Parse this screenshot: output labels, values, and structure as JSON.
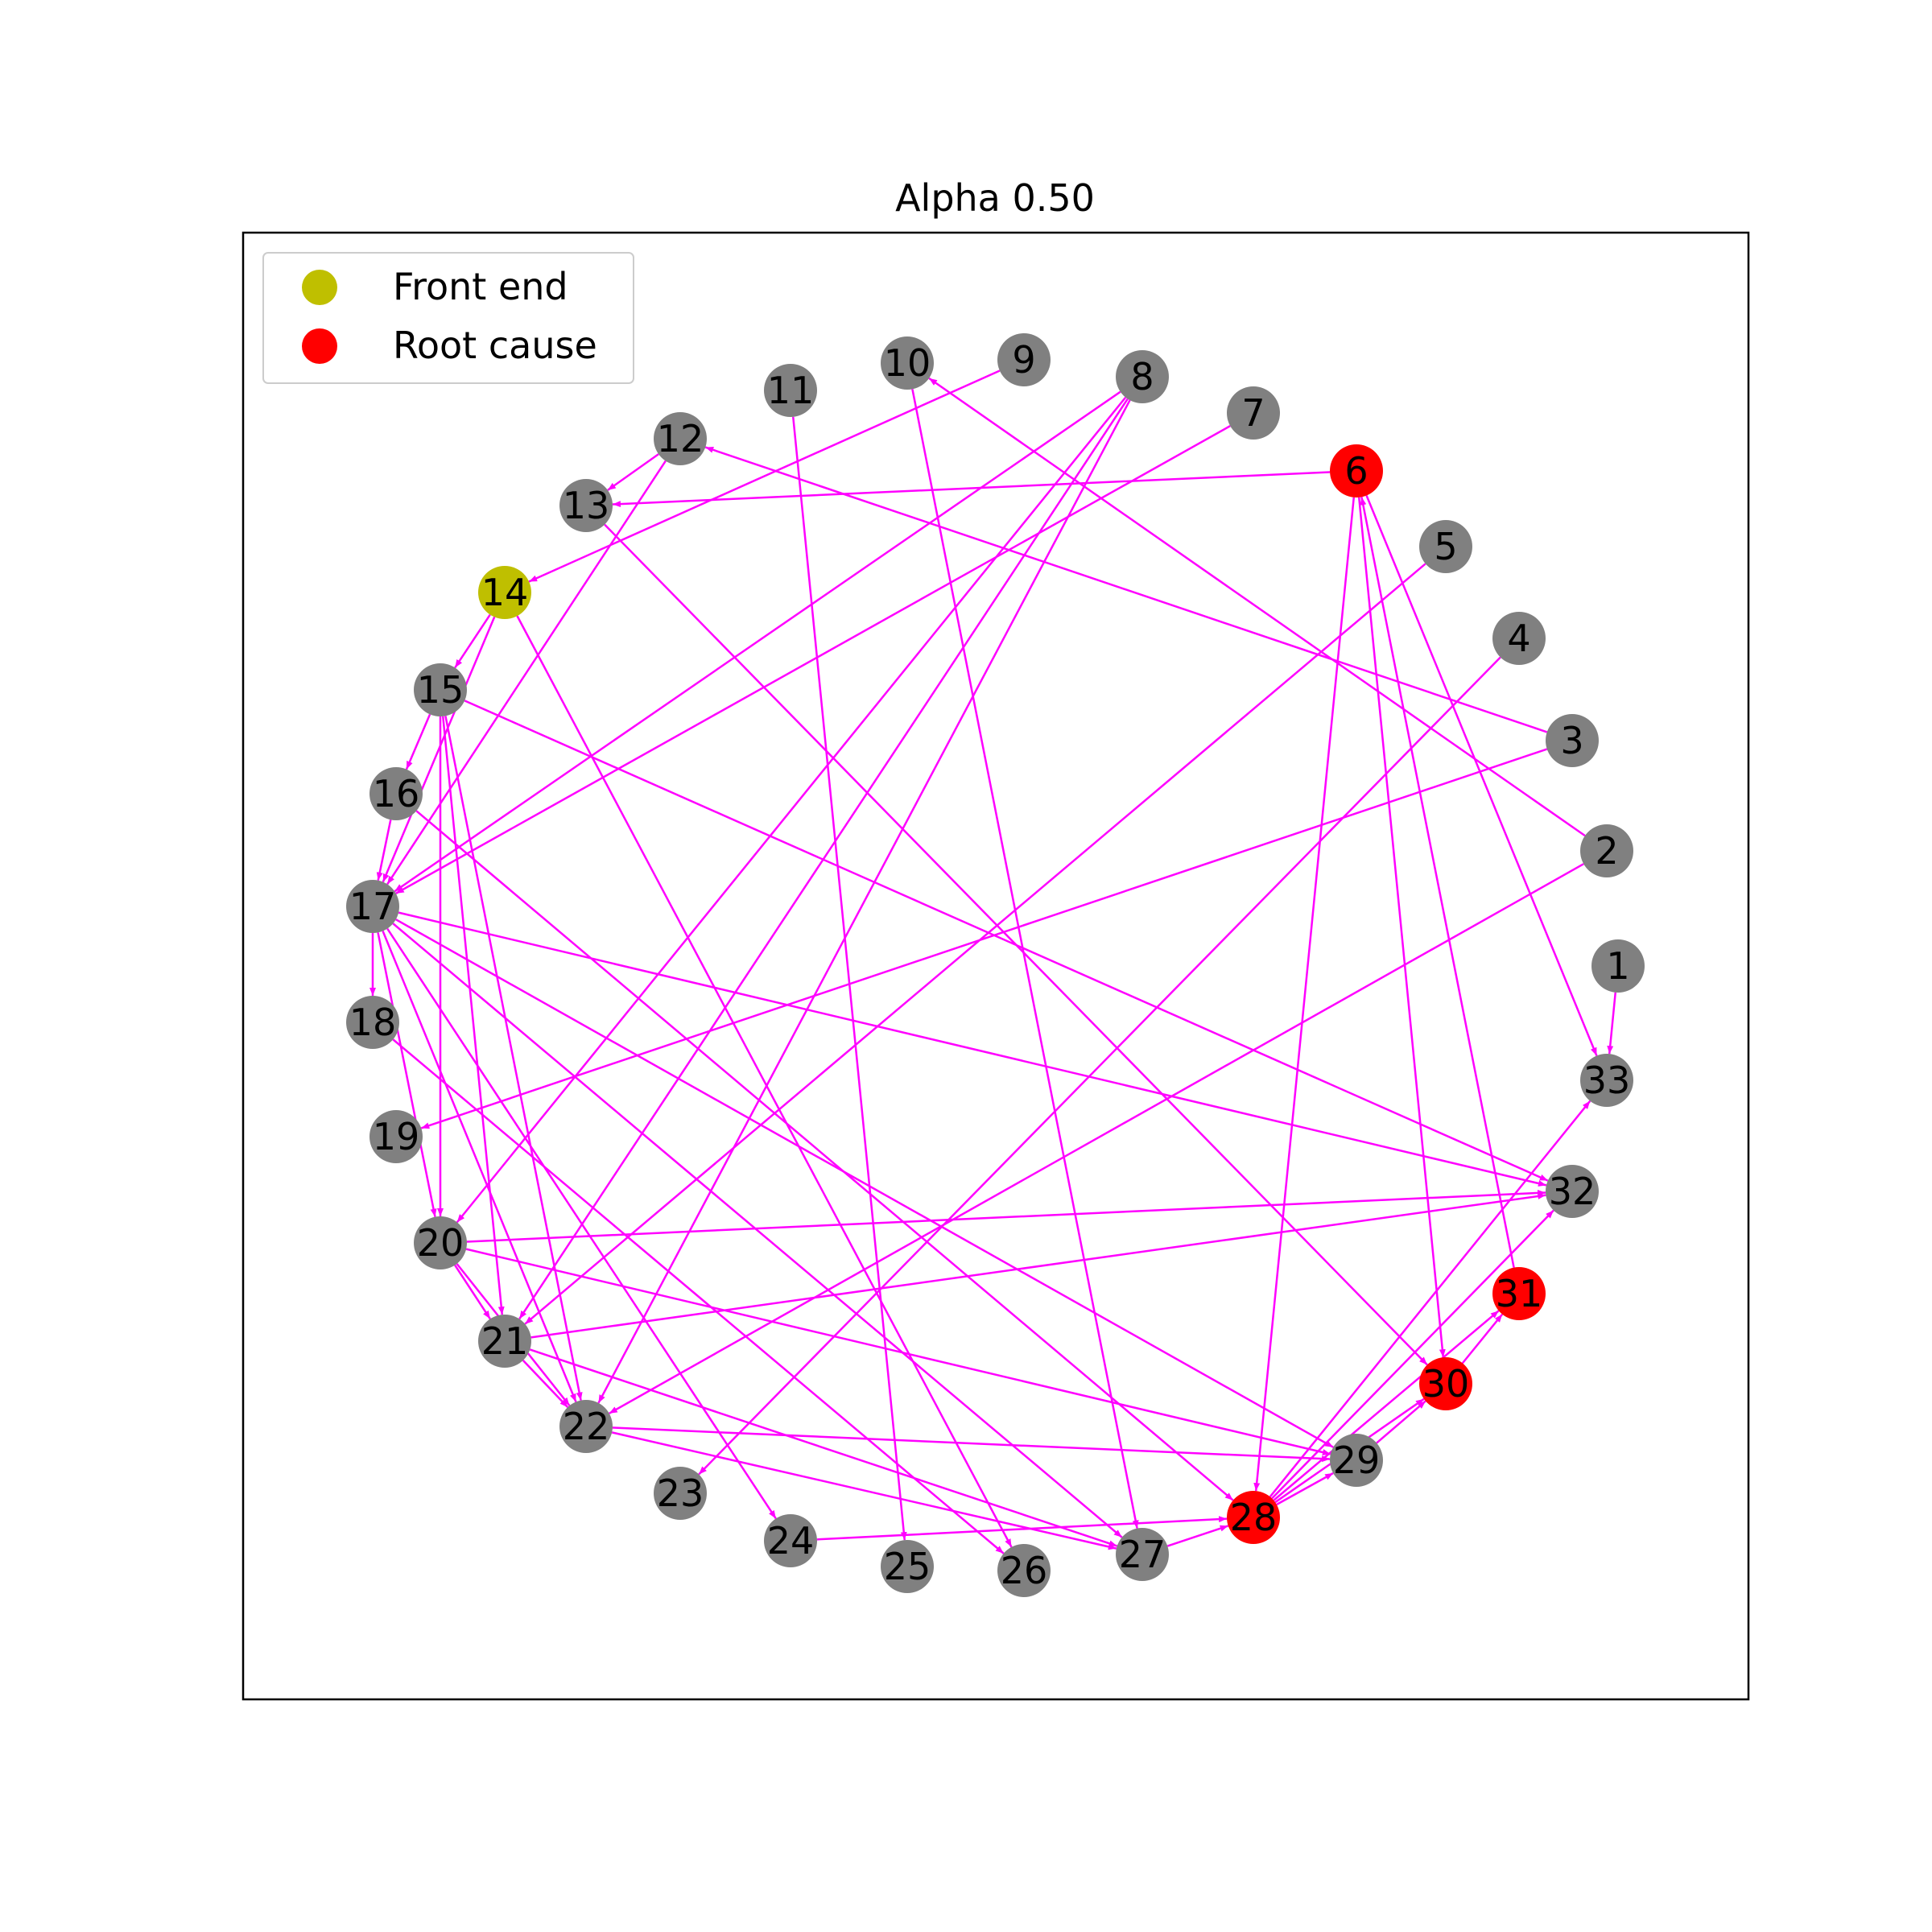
{
  "title": "Alpha 0.50",
  "colors": {
    "edge": "#ff00ff",
    "node_default": "#808080",
    "front_end": "#bfbf00",
    "root_cause": "#ff0000",
    "frame": "#000000"
  },
  "legend": {
    "placement": "top-left",
    "items": [
      {
        "label": "Front end",
        "color": "#bfbf00"
      },
      {
        "label": "Root cause",
        "color": "#ff0000"
      }
    ]
  },
  "graph": {
    "front_end": [
      "14"
    ],
    "root_cause": [
      "6",
      "28",
      "30",
      "31"
    ],
    "nodes": [
      "1",
      "2",
      "3",
      "4",
      "5",
      "6",
      "7",
      "8",
      "9",
      "10",
      "11",
      "12",
      "13",
      "14",
      "15",
      "16",
      "17",
      "18",
      "19",
      "20",
      "21",
      "22",
      "23",
      "24",
      "25",
      "26",
      "27",
      "28",
      "29",
      "30",
      "31",
      "32",
      "33"
    ],
    "edges": [
      [
        "1",
        "33"
      ],
      [
        "2",
        "10"
      ],
      [
        "2",
        "22"
      ],
      [
        "3",
        "12"
      ],
      [
        "3",
        "19"
      ],
      [
        "4",
        "23"
      ],
      [
        "5",
        "21"
      ],
      [
        "6",
        "13"
      ],
      [
        "6",
        "28"
      ],
      [
        "6",
        "30"
      ],
      [
        "6",
        "33"
      ],
      [
        "7",
        "17"
      ],
      [
        "8",
        "17"
      ],
      [
        "8",
        "20"
      ],
      [
        "8",
        "21"
      ],
      [
        "8",
        "22"
      ],
      [
        "9",
        "14"
      ],
      [
        "10",
        "27"
      ],
      [
        "11",
        "25"
      ],
      [
        "12",
        "13"
      ],
      [
        "12",
        "17"
      ],
      [
        "13",
        "30"
      ],
      [
        "14",
        "15"
      ],
      [
        "14",
        "17"
      ],
      [
        "14",
        "26"
      ],
      [
        "15",
        "16"
      ],
      [
        "15",
        "20"
      ],
      [
        "15",
        "21"
      ],
      [
        "15",
        "22"
      ],
      [
        "15",
        "32"
      ],
      [
        "16",
        "17"
      ],
      [
        "16",
        "28"
      ],
      [
        "17",
        "18"
      ],
      [
        "17",
        "20"
      ],
      [
        "17",
        "22"
      ],
      [
        "17",
        "24"
      ],
      [
        "17",
        "27"
      ],
      [
        "17",
        "29"
      ],
      [
        "17",
        "32"
      ],
      [
        "18",
        "26"
      ],
      [
        "20",
        "21"
      ],
      [
        "20",
        "22"
      ],
      [
        "20",
        "29"
      ],
      [
        "20",
        "32"
      ],
      [
        "21",
        "22"
      ],
      [
        "21",
        "27"
      ],
      [
        "21",
        "32"
      ],
      [
        "22",
        "27"
      ],
      [
        "22",
        "29"
      ],
      [
        "24",
        "28"
      ],
      [
        "27",
        "28"
      ],
      [
        "28",
        "29"
      ],
      [
        "28",
        "30"
      ],
      [
        "28",
        "31"
      ],
      [
        "28",
        "32"
      ],
      [
        "28",
        "33"
      ],
      [
        "29",
        "30"
      ],
      [
        "30",
        "31"
      ],
      [
        "31",
        "6"
      ]
    ]
  }
}
